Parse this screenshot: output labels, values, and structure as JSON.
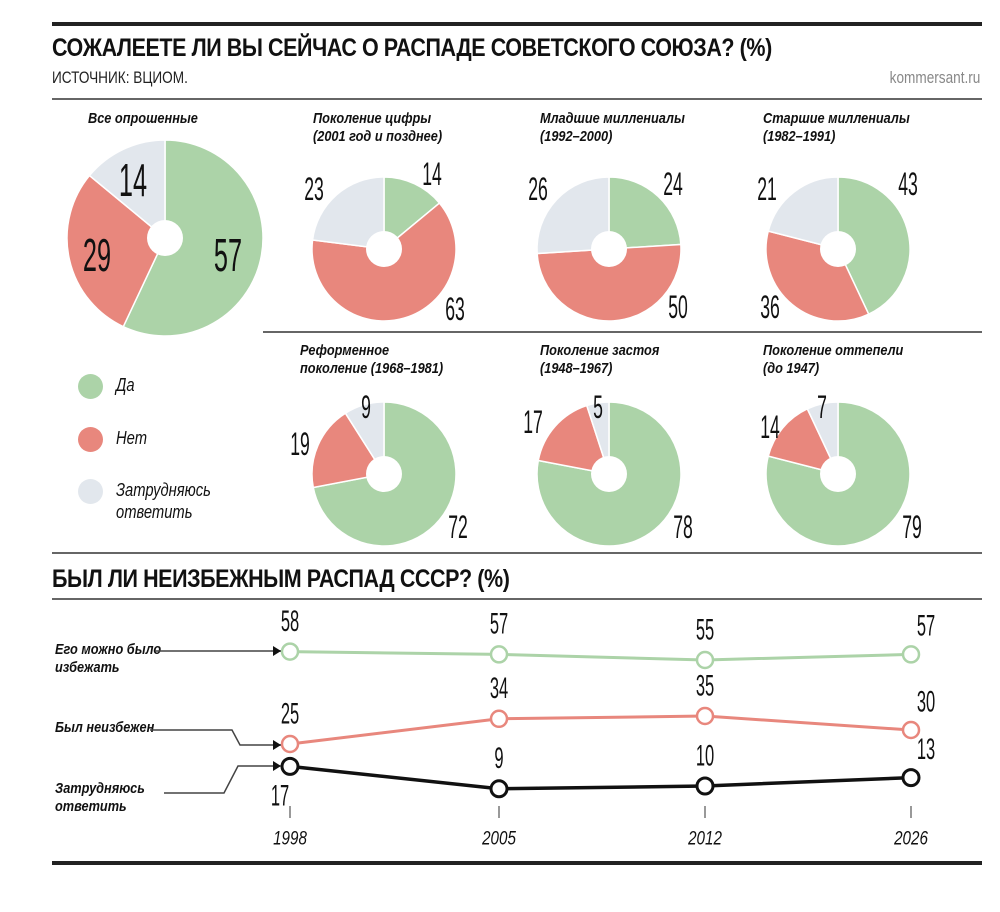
{
  "header": {
    "title": "СОЖАЛЕЕТЕ ЛИ ВЫ СЕЙЧАС О РАСПАДЕ СОВЕТСКОГО СОЮЗА? (%)",
    "source": "ИСТОЧНИК: ВЦИОМ.",
    "brand": "kommersant.ru"
  },
  "colors": {
    "yes": "#acd3a8",
    "no": "#e8877d",
    "unsure": "#e2e7ed",
    "line_avoidable": "#acd3a8",
    "line_inevitable": "#e8877d",
    "line_unsure": "#111111"
  },
  "legend": {
    "yes": "Да",
    "no": "Нет",
    "unsure_1": "Затрудняюсь",
    "unsure_2": "ответить"
  },
  "section2": {
    "title": "БЫЛ ЛИ НЕИЗБЕЖНЫМ РАСПАД СССР? (%)"
  },
  "chart_data": [
    {
      "type": "pie",
      "title": "Все опрошенные",
      "categories": [
        "Да",
        "Нет",
        "Затрудняюсь ответить"
      ],
      "values": [
        57,
        29,
        14
      ]
    },
    {
      "type": "pie",
      "title": "Поколение цифры (2001 год и позднее)",
      "title_1": "Поколение цифры",
      "title_2": "(2001 год и позднее)",
      "categories": [
        "Да",
        "Нет",
        "Затрудняюсь ответить"
      ],
      "values": [
        14,
        63,
        23
      ]
    },
    {
      "type": "pie",
      "title": "Младшие миллениалы (1992–2000)",
      "title_1": "Младшие миллениалы",
      "title_2": "(1992–2000)",
      "categories": [
        "Да",
        "Нет",
        "Затрудняюсь ответить"
      ],
      "values": [
        24,
        50,
        26
      ]
    },
    {
      "type": "pie",
      "title": "Старшие миллениалы (1982–1991)",
      "title_1": "Старшие миллениалы",
      "title_2": "(1982–1991)",
      "categories": [
        "Да",
        "Нет",
        "Затрудняюсь ответить"
      ],
      "values": [
        43,
        36,
        21
      ]
    },
    {
      "type": "pie",
      "title": "Реформенное поколение (1968–1981)",
      "title_1": "Реформенное",
      "title_2": "поколение (1968–1981)",
      "categories": [
        "Да",
        "Нет",
        "Затрудняюсь ответить"
      ],
      "values": [
        72,
        19,
        9
      ]
    },
    {
      "type": "pie",
      "title": "Поколение застоя (1948–1967)",
      "title_1": "Поколение застоя",
      "title_2": "(1948–1967)",
      "categories": [
        "Да",
        "Нет",
        "Затрудняюсь ответить"
      ],
      "values": [
        78,
        17,
        5
      ]
    },
    {
      "type": "pie",
      "title": "Поколение оттепели (до 1947)",
      "title_1": "Поколение оттепели",
      "title_2": "(до 1947)",
      "categories": [
        "Да",
        "Нет",
        "Затрудняюсь ответить"
      ],
      "values": [
        79,
        14,
        7
      ]
    },
    {
      "type": "line",
      "title": "БЫЛ ЛИ НЕИЗБЕЖНЫМ РАСПАД СССР? (%)",
      "x": [
        "1998",
        "2005",
        "2012",
        "2026"
      ],
      "series": [
        {
          "name": "Его можно было избежать",
          "name_1": "Его можно было",
          "name_2": "избежать",
          "values": [
            58,
            57,
            55,
            57
          ]
        },
        {
          "name": "Был неизбежен",
          "values": [
            25,
            34,
            35,
            30
          ]
        },
        {
          "name": "Затрудняюсь ответить",
          "name_1": "Затрудняюсь",
          "name_2": "ответить",
          "values": [
            17,
            9,
            10,
            13
          ]
        }
      ],
      "grid": false
    }
  ]
}
